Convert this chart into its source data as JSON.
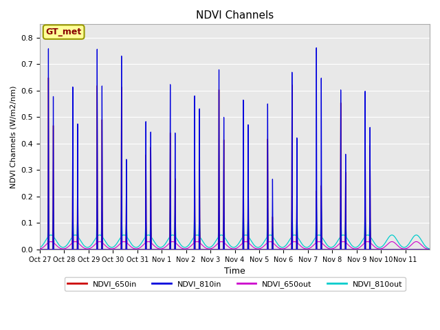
{
  "title": "NDVI Channels",
  "xlabel": "Time",
  "ylabel": "NDVI Channels (W/m2/nm)",
  "ylim": [
    0.0,
    0.85
  ],
  "yticks": [
    0.0,
    0.1,
    0.2,
    0.3,
    0.4,
    0.5,
    0.6,
    0.7,
    0.8
  ],
  "legend_labels": [
    "NDVI_650in",
    "NDVI_810in",
    "NDVI_650out",
    "NDVI_810out"
  ],
  "legend_colors": [
    "#cc0000",
    "#0000dd",
    "#cc00cc",
    "#00cccc"
  ],
  "bg_color": "#e8e8e8",
  "annotation_text": "GT_met",
  "annotation_bg": "#ffff99",
  "annotation_border": "#999900",
  "annotation_text_color": "#880000",
  "x_tick_labels": [
    "Oct 27",
    "Oct 28",
    "Oct 29",
    "Oct 30",
    "Oct 31",
    "Nov 1",
    "Nov 2",
    "Nov 3",
    "Nov 4",
    "Nov 5",
    "Nov 6",
    "Nov 7",
    "Nov 8",
    "Nov 9",
    "Nov 10",
    "Nov 11"
  ],
  "num_days": 16,
  "spike_color_650in": "#cc0000",
  "spike_color_810in": "#0000dd",
  "spike_color_650out": "#cc00cc",
  "spike_color_810out": "#00cccc",
  "spike_data": {
    "day_offsets": [
      0.35,
      0.55,
      1.35,
      1.55,
      2.35,
      2.55,
      3.35,
      3.55,
      4.35,
      4.55,
      5.35,
      5.55,
      6.35,
      6.55,
      7.35,
      7.55,
      8.35,
      8.55,
      9.35,
      9.55,
      10.35,
      10.55,
      11.35,
      11.55,
      12.35,
      12.55,
      13.35,
      13.55
    ],
    "peaks_810in": [
      0.76,
      0.58,
      0.62,
      0.48,
      0.77,
      0.63,
      0.75,
      0.35,
      0.5,
      0.46,
      0.65,
      0.46,
      0.61,
      0.56,
      0.72,
      0.53,
      0.6,
      0.5,
      0.58,
      0.28,
      0.7,
      0.44,
      0.79,
      0.67,
      0.62,
      0.37,
      0.61,
      0.47
    ],
    "peaks_650in": [
      0.65,
      0.47,
      0.47,
      0.37,
      0.63,
      0.5,
      0.63,
      0.26,
      0.37,
      0.4,
      0.46,
      0.28,
      0.46,
      0.35,
      0.64,
      0.44,
      0.46,
      0.36,
      0.44,
      0.13,
      0.65,
      0.25,
      0.23,
      0.25,
      0.57,
      0.3,
      0.57,
      0.4
    ],
    "peaks_810out": [
      0.12,
      0.1,
      0.09,
      0.08,
      0.12,
      0.1,
      0.11,
      0.06,
      0.07,
      0.07,
      0.12,
      0.1,
      0.11,
      0.09,
      0.1,
      0.08,
      0.12,
      0.1,
      0.11,
      0.04,
      0.13,
      0.09,
      0.13,
      0.12,
      0.1,
      0.07,
      0.11,
      0.09
    ],
    "peaks_650out": [
      0.09,
      0.07,
      0.07,
      0.06,
      0.09,
      0.07,
      0.08,
      0.05,
      0.05,
      0.06,
      0.09,
      0.07,
      0.08,
      0.07,
      0.08,
      0.06,
      0.09,
      0.08,
      0.08,
      0.03,
      0.1,
      0.07,
      0.1,
      0.09,
      0.08,
      0.05,
      0.08,
      0.07
    ]
  }
}
